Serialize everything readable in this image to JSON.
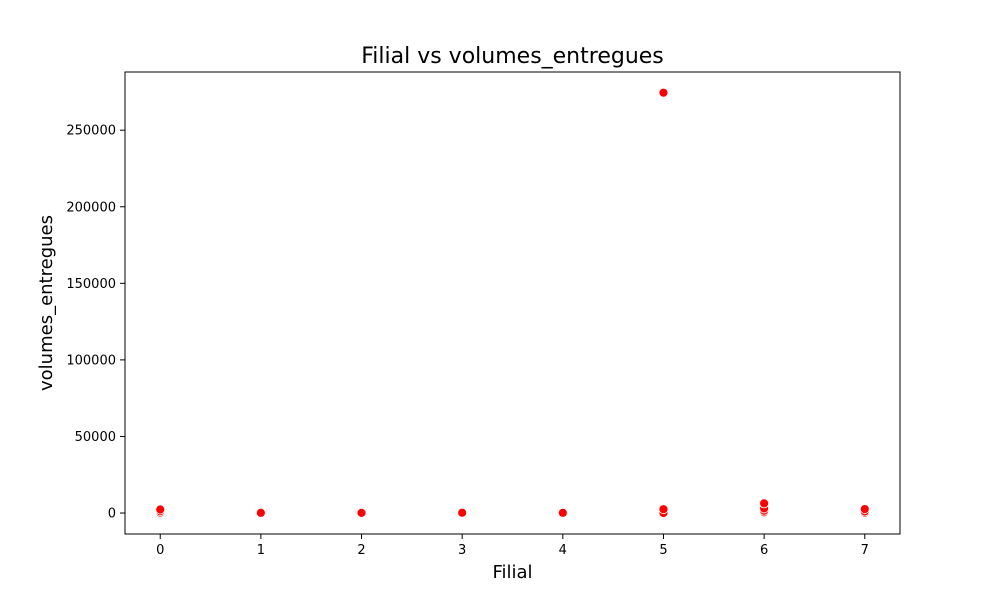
{
  "chart_data": {
    "type": "scatter",
    "title": "Filial vs volumes_entregues",
    "xlabel": "Filial",
    "ylabel": "volumes_entregues",
    "xlim": [
      -0.35,
      7.35
    ],
    "ylim": [
      -13700,
      288000
    ],
    "x_ticks": [
      0,
      1,
      2,
      3,
      4,
      5,
      6,
      7
    ],
    "y_ticks": [
      0,
      50000,
      100000,
      150000,
      200000,
      250000
    ],
    "y_tick_labels": [
      "0",
      "50000",
      "100000",
      "150000",
      "200000",
      "250000"
    ],
    "grid": false,
    "marker_color": "#ff0000",
    "points": [
      {
        "x": 0,
        "y": 0
      },
      {
        "x": 0,
        "y": 300
      },
      {
        "x": 0,
        "y": 1200
      },
      {
        "x": 0,
        "y": 2300
      },
      {
        "x": 1,
        "y": 0
      },
      {
        "x": 1,
        "y": 150
      },
      {
        "x": 2,
        "y": 0
      },
      {
        "x": 2,
        "y": 100
      },
      {
        "x": 3,
        "y": 0
      },
      {
        "x": 3,
        "y": 200
      },
      {
        "x": 4,
        "y": 0
      },
      {
        "x": 4,
        "y": 150
      },
      {
        "x": 5,
        "y": 0
      },
      {
        "x": 5,
        "y": 2500
      },
      {
        "x": 5,
        "y": 274500
      },
      {
        "x": 6,
        "y": 0
      },
      {
        "x": 6,
        "y": 500
      },
      {
        "x": 6,
        "y": 1500
      },
      {
        "x": 6,
        "y": 3000
      },
      {
        "x": 6,
        "y": 6300
      },
      {
        "x": 7,
        "y": 200
      },
      {
        "x": 7,
        "y": 1000
      },
      {
        "x": 7,
        "y": 2600
      }
    ]
  }
}
